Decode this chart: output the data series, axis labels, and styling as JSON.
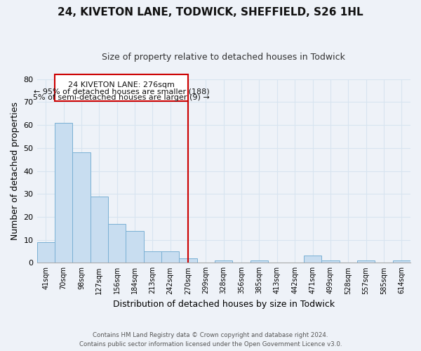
{
  "title": "24, KIVETON LANE, TODWICK, SHEFFIELD, S26 1HL",
  "subtitle": "Size of property relative to detached houses in Todwick",
  "xlabel": "Distribution of detached houses by size in Todwick",
  "ylabel": "Number of detached properties",
  "bar_labels": [
    "41sqm",
    "70sqm",
    "98sqm",
    "127sqm",
    "156sqm",
    "184sqm",
    "213sqm",
    "242sqm",
    "270sqm",
    "299sqm",
    "328sqm",
    "356sqm",
    "385sqm",
    "413sqm",
    "442sqm",
    "471sqm",
    "499sqm",
    "528sqm",
    "557sqm",
    "585sqm",
    "614sqm"
  ],
  "bar_values": [
    9,
    61,
    48,
    29,
    17,
    14,
    5,
    5,
    2,
    0,
    1,
    0,
    1,
    0,
    0,
    3,
    1,
    0,
    1,
    0,
    1
  ],
  "bar_color": "#c8ddf0",
  "bar_edge_color": "#7ab0d4",
  "ylim": [
    0,
    80
  ],
  "yticks": [
    0,
    10,
    20,
    30,
    40,
    50,
    60,
    70,
    80
  ],
  "property_line_x": 8.5,
  "property_label": "24 KIVETON LANE: 276sqm",
  "annotation_line1": "← 95% of detached houses are smaller (188)",
  "annotation_line2": "5% of semi-detached houses are larger (9) →",
  "footer_line1": "Contains HM Land Registry data © Crown copyright and database right 2024.",
  "footer_line2": "Contains public sector information licensed under the Open Government Licence v3.0.",
  "bg_color": "#eef2f8",
  "grid_color": "#d8e4f0",
  "annotation_box_color": "#ffffff",
  "annotation_border_color": "#cc0000",
  "property_line_color": "#cc0000",
  "title_fontsize": 11,
  "subtitle_fontsize": 9,
  "ylabel_fontsize": 9,
  "xlabel_fontsize": 9
}
